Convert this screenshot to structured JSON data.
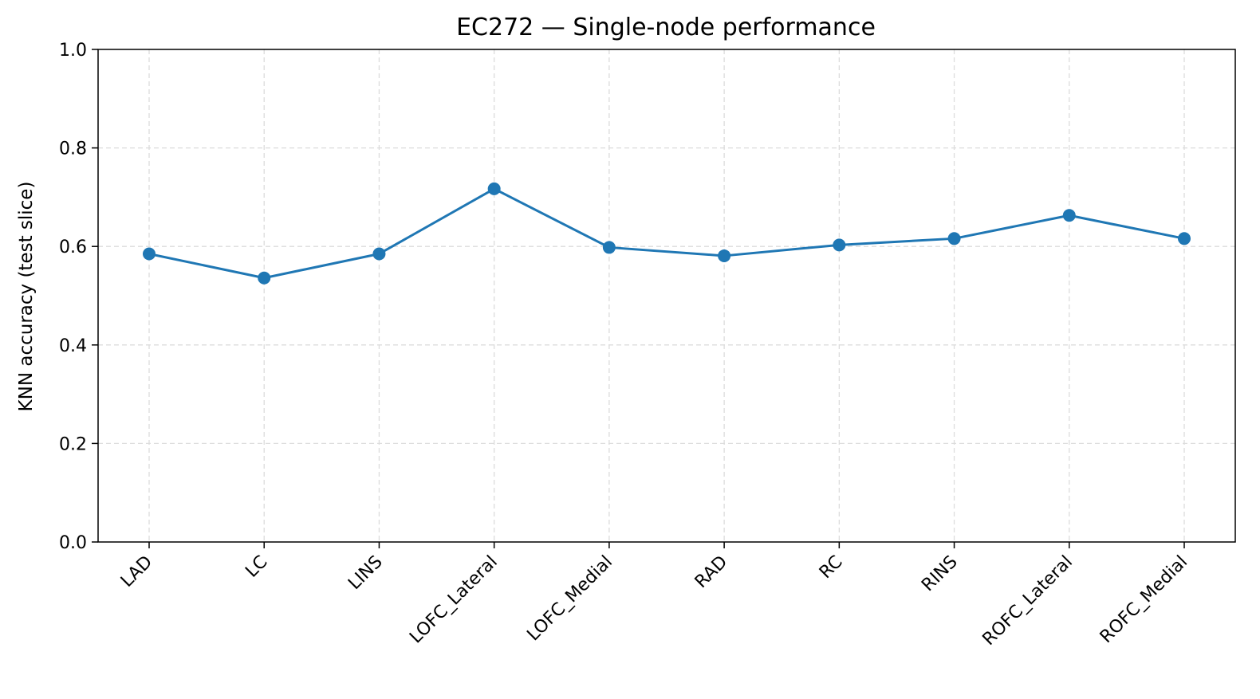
{
  "chart_data": {
    "type": "line",
    "title": "EC272 — Single-node performance",
    "xlabel": "",
    "ylabel": "KNN accuracy (test slice)",
    "categories": [
      "LAD",
      "LC",
      "LINS",
      "LOFC_Lateral",
      "LOFC_Medial",
      "RAD",
      "RC",
      "RINS",
      "ROFC_Lateral",
      "ROFC_Medial"
    ],
    "series": [
      {
        "values": [
          0.585,
          0.536,
          0.585,
          0.717,
          0.598,
          0.581,
          0.603,
          0.616,
          0.663,
          0.616
        ]
      }
    ],
    "ylim": [
      0.0,
      1.0
    ],
    "yticks": [
      "0.0",
      "0.2",
      "0.4",
      "0.6",
      "0.8",
      "1.0"
    ],
    "grid": true,
    "legend": "none",
    "colors": {
      "line": "#1f77b4",
      "grid": "#dcdcdc",
      "axis": "#000000"
    }
  }
}
